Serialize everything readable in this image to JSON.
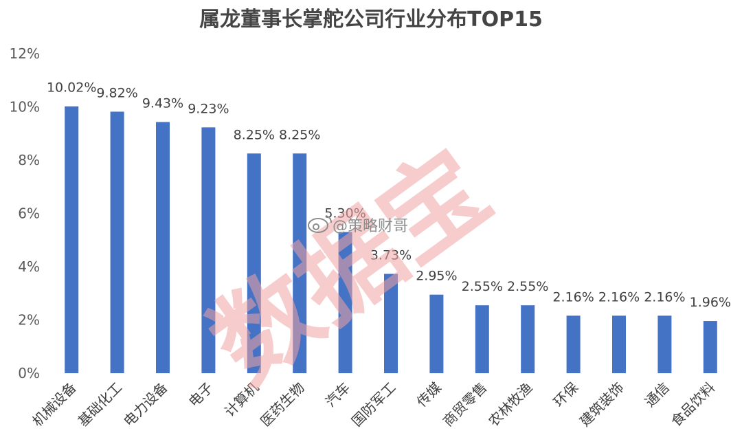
{
  "chart_data": {
    "type": "bar",
    "title": "属龙董事长掌舵公司行业分布TOP15",
    "xlabel": "",
    "ylabel": "",
    "ylim": [
      0,
      12
    ],
    "yticks": [
      "0%",
      "2%",
      "4%",
      "6%",
      "8%",
      "10%",
      "12%"
    ],
    "grid": false,
    "legend": "none",
    "categories": [
      "机械设备",
      "基础化工",
      "电力设备",
      "电子",
      "计算机",
      "医药生物",
      "汽车",
      "国防军工",
      "传媒",
      "商贸零售",
      "农林牧渔",
      "环保",
      "建筑装饰",
      "通信",
      "食品饮料"
    ],
    "values": [
      10.02,
      9.82,
      9.43,
      9.23,
      8.25,
      8.25,
      5.3,
      3.73,
      2.95,
      2.55,
      2.55,
      2.16,
      2.16,
      2.16,
      1.96
    ],
    "value_labels": [
      "10.02%",
      "9.82%",
      "9.43%",
      "9.23%",
      "8.25%",
      "8.25%",
      "5.30%",
      "3.73%",
      "2.95%",
      "2.55%",
      "2.55%",
      "2.16%",
      "2.16%",
      "2.16%",
      "1.96%"
    ],
    "bar_color": "#4472c4"
  },
  "watermark": {
    "text": "数据宝",
    "color": "#f2a3a3"
  },
  "weibo_tag": {
    "text": "@策略财哥",
    "icon": "weibo-icon"
  }
}
